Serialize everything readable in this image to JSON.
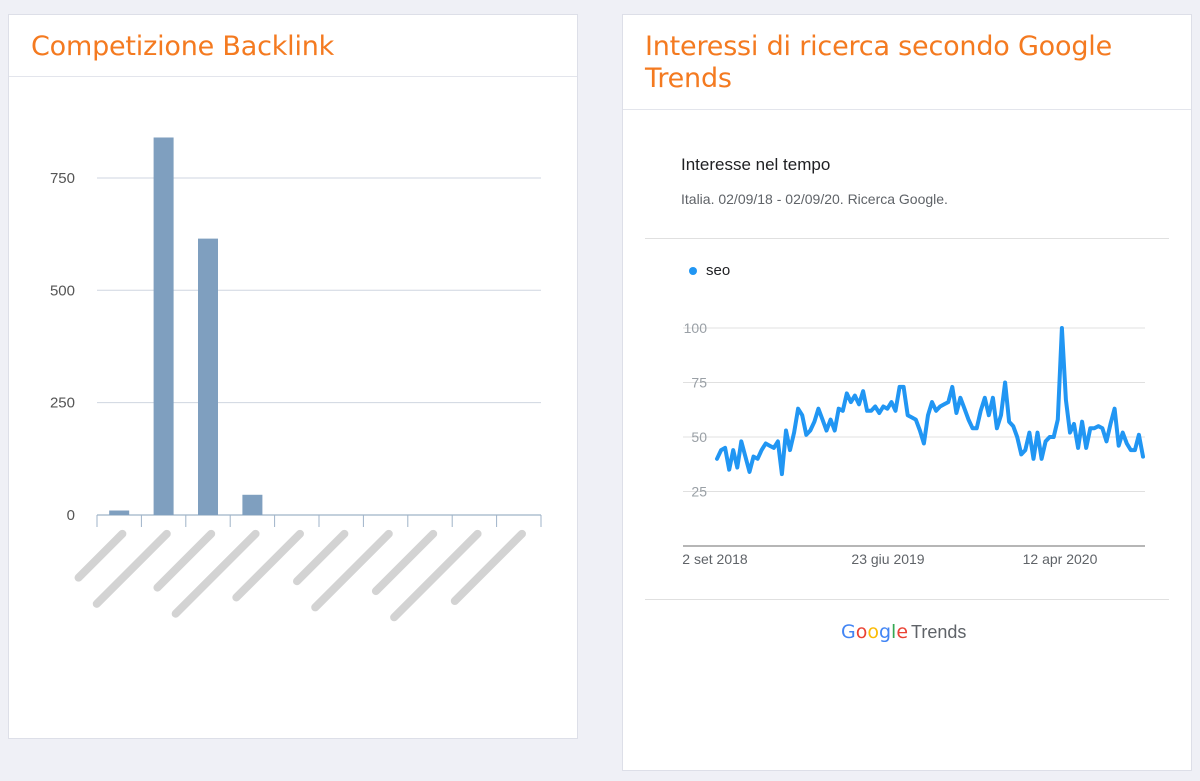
{
  "left_panel": {
    "title": "Competizione Backlink"
  },
  "right_panel": {
    "title_line1": "Interessi di ricerca secondo Google",
    "title_line2": "Trends",
    "trends_title": "Interesse nel tempo",
    "trends_subtitle": "Italia. 02/09/18 - 02/09/20. Ricerca Google.",
    "brand": {
      "letters": [
        {
          "ch": "G",
          "color": "#4285f4"
        },
        {
          "ch": "o",
          "color": "#ea4335"
        },
        {
          "ch": "o",
          "color": "#fbbc05"
        },
        {
          "ch": "g",
          "color": "#4285f4"
        },
        {
          "ch": "l",
          "color": "#34a853"
        },
        {
          "ch": "e",
          "color": "#ea4335"
        }
      ],
      "suffix": "Trends"
    }
  },
  "chart_data": [
    {
      "type": "bar",
      "title": "Competizione Backlink",
      "categories": [
        "",
        "",
        "",
        "",
        "",
        "",
        "",
        "",
        "",
        ""
      ],
      "category_labels_note": "blurred",
      "values": [
        10,
        840,
        615,
        45,
        0,
        0,
        0,
        0,
        0,
        0
      ],
      "ylim": [
        0,
        850
      ],
      "yticks": [
        0,
        250,
        500,
        750
      ],
      "grid": true,
      "bar_color": "#7f9fbf"
    },
    {
      "type": "line",
      "title": "Interesse nel tempo",
      "x_start": "2 set 2018",
      "x_end": "2 set 2020",
      "x_ticks": [
        "2 set 2018",
        "23 giu 2019",
        "12 apr 2020"
      ],
      "yticks": [
        25,
        50,
        75,
        100
      ],
      "ylim": [
        0,
        100
      ],
      "series": [
        {
          "name": "seo",
          "color": "#2196f3",
          "values": [
            40,
            44,
            45,
            35,
            44,
            36,
            48,
            41,
            34,
            41,
            40,
            44,
            47,
            46,
            45,
            48,
            33,
            53,
            44,
            52,
            63,
            60,
            51,
            53,
            57,
            63,
            58,
            53,
            58,
            53,
            63,
            62,
            70,
            66,
            69,
            65,
            71,
            62,
            62,
            64,
            61,
            64,
            63,
            66,
            62,
            73,
            73,
            60,
            59,
            58,
            53,
            47,
            60,
            66,
            62,
            64,
            65,
            66,
            73,
            61,
            68,
            63,
            58,
            54,
            54,
            62,
            68,
            60,
            68,
            54,
            60,
            75,
            57,
            55,
            50,
            42,
            44,
            52,
            40,
            52,
            40,
            48,
            50,
            50,
            58,
            100,
            67,
            52,
            56,
            45,
            57,
            45,
            54,
            54,
            55,
            54,
            48,
            56,
            63,
            46,
            52,
            47,
            44,
            44,
            51,
            41
          ]
        }
      ]
    }
  ]
}
